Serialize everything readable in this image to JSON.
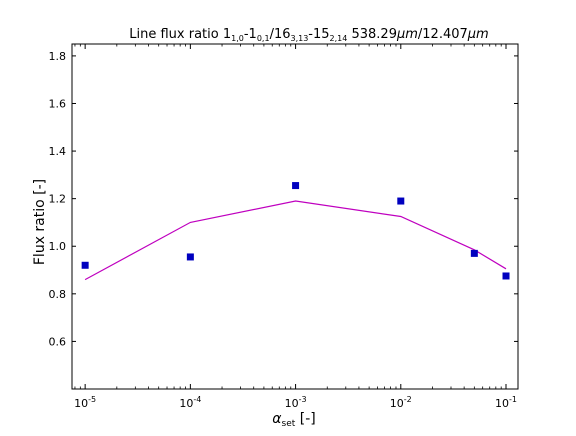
{
  "chart_data": {
    "type": "line",
    "title": "Line flux ratio 1₁,₀-1₀,₁/16₃,₁₃-15₂,₁₄ 538.29μm/12.407μm",
    "title_parts": {
      "prefix": "Line flux ratio 1",
      "sub1": "1,0",
      "mid1": "-1",
      "sub2": "0,1",
      "mid2": "/16",
      "sub3": "3,13",
      "mid3": "-15",
      "sub4": "2,14",
      "suffix": " 538.29",
      "mu1": "μm",
      "slash": "/12.407",
      "mu2": "μm"
    },
    "xlabel": {
      "symbol": "α",
      "sub": "set",
      "unit": " [-]"
    },
    "ylabel": "Flux ratio [-]",
    "x_scale": "log",
    "xlim": [
      7.5e-06,
      0.13
    ],
    "ylim": [
      0.4,
      1.85
    ],
    "x_ticks": [
      {
        "value": 1e-05,
        "base": "10",
        "exp": "-5"
      },
      {
        "value": 0.0001,
        "base": "10",
        "exp": "-4"
      },
      {
        "value": 0.001,
        "base": "10",
        "exp": "-3"
      },
      {
        "value": 0.01,
        "base": "10",
        "exp": "-2"
      },
      {
        "value": 0.1,
        "base": "10",
        "exp": "-1"
      }
    ],
    "y_ticks": [
      {
        "value": 0.6,
        "label": "0.6"
      },
      {
        "value": 0.8,
        "label": "0.8"
      },
      {
        "value": 1.0,
        "label": "1.0"
      },
      {
        "value": 1.2,
        "label": "1.2"
      },
      {
        "value": 1.4,
        "label": "1.4"
      },
      {
        "value": 1.6,
        "label": "1.6"
      },
      {
        "value": 1.8,
        "label": "1.8"
      }
    ],
    "grid": false,
    "series": [
      {
        "kind": "line",
        "color": "#bf00bf",
        "x": [
          1e-05,
          0.0001,
          0.001,
          0.01,
          0.05,
          0.1
        ],
        "y": [
          0.86,
          1.1,
          1.19,
          1.125,
          0.985,
          0.905
        ]
      },
      {
        "kind": "scatter",
        "marker": "square",
        "color": "#0000bf",
        "x": [
          1e-05,
          0.0001,
          0.001,
          0.01,
          0.05,
          0.1
        ],
        "y": [
          0.92,
          0.955,
          1.255,
          1.19,
          0.97,
          0.875
        ]
      }
    ]
  }
}
